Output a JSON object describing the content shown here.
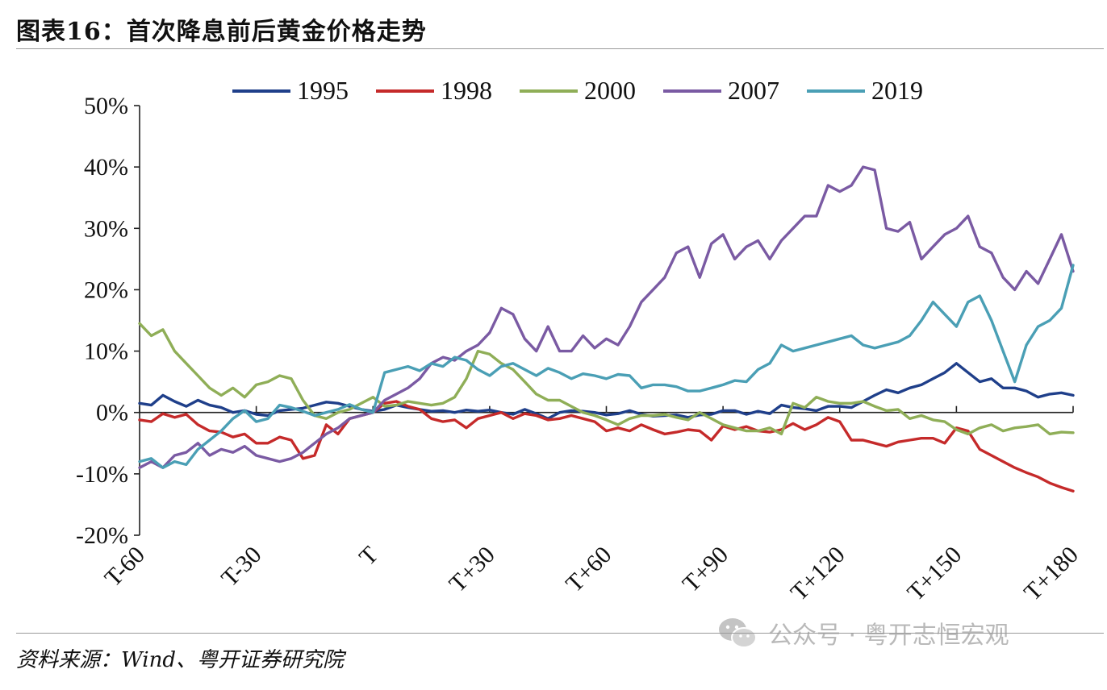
{
  "figure_title": "图表16：首次降息前后黄金价格走势",
  "source": "资料来源：Wind、粤开证券研究院",
  "watermark": {
    "text": "公众号 · 粤开志恒宏观",
    "icon": "wechat-icon"
  },
  "chart_data": {
    "type": "line",
    "title": "图表16：首次降息前后黄金价格走势",
    "xlabel": "",
    "ylabel": "",
    "ylim": [
      -20,
      50
    ],
    "xlim": [
      -60,
      180
    ],
    "y_ticks": [
      50,
      40,
      30,
      20,
      10,
      0,
      -10,
      -20
    ],
    "y_tick_labels": [
      "50%",
      "40%",
      "30%",
      "20%",
      "10%",
      "0%",
      "-10%",
      "-20%"
    ],
    "x_ticks": [
      -60,
      -30,
      0,
      30,
      60,
      90,
      120,
      150,
      180
    ],
    "x_tick_labels": [
      "T-60",
      "T-30",
      "T",
      "T+30",
      "T+60",
      "T+90",
      "T+120",
      "T+150",
      "T+180"
    ],
    "legend_position": "top",
    "grid": false,
    "series": [
      {
        "name": "1995",
        "color": "#1f3f8a",
        "x": [
          -60,
          -57,
          -54,
          -51,
          -48,
          -45,
          -42,
          -39,
          -36,
          -33,
          -30,
          -27,
          -24,
          -21,
          -18,
          -15,
          -12,
          -9,
          -6,
          -3,
          0,
          3,
          6,
          9,
          12,
          15,
          18,
          21,
          24,
          27,
          30,
          33,
          36,
          39,
          42,
          45,
          48,
          51,
          54,
          57,
          60,
          63,
          66,
          69,
          72,
          75,
          78,
          81,
          84,
          87,
          90,
          93,
          96,
          99,
          102,
          105,
          108,
          111,
          114,
          117,
          120,
          123,
          126,
          129,
          132,
          135,
          138,
          141,
          144,
          147,
          150,
          153,
          156,
          159,
          162,
          165,
          168,
          171,
          174,
          177,
          180
        ],
        "values": [
          1.5,
          1.2,
          2.8,
          1.8,
          1,
          2,
          1.2,
          0.8,
          0,
          0.3,
          -0.3,
          -0.5,
          0.3,
          0.5,
          0.7,
          1.2,
          1.7,
          1.5,
          1,
          0.5,
          0.2,
          0.5,
          1.2,
          0.8,
          0.5,
          0.2,
          0.3,
          0,
          0.4,
          0.2,
          0.4,
          0,
          -0.3,
          0.5,
          -0.2,
          -1,
          0,
          0.3,
          0.2,
          0,
          -0.4,
          -0.2,
          0.3,
          -0.3,
          -0.6,
          -0.5,
          -0.4,
          -0.8,
          -0.4,
          -0.3,
          0.3,
          0.3,
          -0.3,
          0.2,
          -0.2,
          1.2,
          0.8,
          0.6,
          0.3,
          1,
          1,
          0.8,
          1.8,
          2.8,
          3.7,
          3.2,
          4,
          4.5,
          5.5,
          6.5,
          8,
          6.5,
          5,
          5.5,
          4,
          4,
          3.5,
          2.5,
          3,
          3.2,
          2.8
        ]
      },
      {
        "name": "1998",
        "color": "#c52a2a",
        "x": [
          -60,
          -57,
          -54,
          -51,
          -48,
          -45,
          -42,
          -39,
          -36,
          -33,
          -30,
          -27,
          -24,
          -21,
          -18,
          -15,
          -12,
          -9,
          -6,
          -3,
          0,
          3,
          6,
          9,
          12,
          15,
          18,
          21,
          24,
          27,
          30,
          33,
          36,
          39,
          42,
          45,
          48,
          51,
          54,
          57,
          60,
          63,
          66,
          69,
          72,
          75,
          78,
          81,
          84,
          87,
          90,
          93,
          96,
          99,
          102,
          105,
          108,
          111,
          114,
          117,
          120,
          123,
          126,
          129,
          132,
          135,
          138,
          141,
          144,
          147,
          150,
          153,
          156,
          159,
          162,
          165,
          168,
          171,
          174,
          177,
          180
        ],
        "values": [
          -1.2,
          -1.5,
          -0.2,
          -0.8,
          -0.3,
          -2,
          -3,
          -3.2,
          -4,
          -3.5,
          -5,
          -5,
          -4,
          -4.5,
          -7.5,
          -7,
          -2,
          -3.5,
          -1,
          -0.5,
          0,
          1.5,
          1.8,
          1,
          0.5,
          -1,
          -1.5,
          -1.2,
          -2.5,
          -1,
          -0.5,
          0,
          -1,
          -0.2,
          -0.5,
          -1.2,
          -1,
          -0.5,
          -1,
          -1.5,
          -3,
          -2.5,
          -3,
          -2,
          -2.8,
          -3.5,
          -3.2,
          -2.8,
          -3,
          -4.5,
          -2.2,
          -2.8,
          -2.3,
          -3,
          -3.2,
          -2.8,
          -1.8,
          -2.8,
          -2,
          -0.8,
          -1.5,
          -4.5,
          -4.5,
          -5,
          -5.5,
          -4.8,
          -4.5,
          -4.2,
          -4.2,
          -5,
          -2.5,
          -3,
          -6,
          -7,
          -8,
          -9,
          -9.8,
          -10.5,
          -11.5,
          -12.2,
          -12.8
        ]
      },
      {
        "name": "2000",
        "color": "#8fae57",
        "x": [
          -60,
          -57,
          -54,
          -51,
          -48,
          -45,
          -42,
          -39,
          -36,
          -33,
          -30,
          -27,
          -24,
          -21,
          -18,
          -15,
          -12,
          -9,
          -6,
          -3,
          0,
          3,
          6,
          9,
          12,
          15,
          18,
          21,
          24,
          27,
          30,
          33,
          36,
          39,
          42,
          45,
          48,
          51,
          54,
          57,
          60,
          63,
          66,
          69,
          72,
          75,
          78,
          81,
          84,
          87,
          90,
          93,
          96,
          99,
          102,
          105,
          108,
          111,
          114,
          117,
          120,
          123,
          126,
          129,
          132,
          135,
          138,
          141,
          144,
          147,
          150,
          153,
          156,
          159,
          162,
          165,
          168,
          171,
          174,
          177,
          180
        ],
        "values": [
          14.5,
          12.5,
          13.5,
          10,
          8,
          6,
          4,
          2.8,
          4,
          2.5,
          4.5,
          5,
          6,
          5.5,
          2,
          -0.5,
          -1,
          0,
          0.5,
          1.5,
          2.5,
          1,
          1.2,
          1.8,
          1.5,
          1.2,
          1.5,
          2.5,
          5.5,
          10,
          9.5,
          8,
          7,
          5,
          3,
          2,
          2,
          1,
          0,
          -0.5,
          -1.2,
          -2,
          -1,
          -0.5,
          -0.5,
          -0.3,
          -0.8,
          -1.2,
          0,
          -1,
          -2,
          -2.5,
          -3,
          -3,
          -2.5,
          -3.5,
          1.5,
          0.8,
          2.5,
          1.8,
          1.5,
          1.5,
          1.8,
          1,
          0.3,
          0.5,
          -1,
          -0.5,
          -1.2,
          -1.5,
          -2.8,
          -3.5,
          -2.5,
          -2,
          -3,
          -2.5,
          -2.3,
          -2,
          -3.5,
          -3.2,
          -3.3
        ]
      },
      {
        "name": "2007",
        "color": "#7a5aa3",
        "x": [
          -60,
          -57,
          -54,
          -51,
          -48,
          -45,
          -42,
          -39,
          -36,
          -33,
          -30,
          -27,
          -24,
          -21,
          -18,
          -15,
          -12,
          -9,
          -6,
          -3,
          0,
          3,
          6,
          9,
          12,
          15,
          18,
          21,
          24,
          27,
          30,
          33,
          36,
          39,
          42,
          45,
          48,
          51,
          54,
          57,
          60,
          63,
          66,
          69,
          72,
          75,
          78,
          81,
          84,
          87,
          90,
          93,
          96,
          99,
          102,
          105,
          108,
          111,
          114,
          117,
          120,
          123,
          126,
          129,
          132,
          135,
          138,
          141,
          144,
          147,
          150,
          153,
          156,
          159,
          162,
          165,
          168,
          171,
          174,
          177,
          180
        ],
        "values": [
          -9,
          -8,
          -9,
          -7,
          -6.5,
          -5,
          -7,
          -6,
          -6.5,
          -5.5,
          -7,
          -7.5,
          -8,
          -7.5,
          -6.5,
          -5,
          -3.5,
          -2.5,
          -1,
          -0.5,
          0,
          2,
          3,
          4,
          5.5,
          8,
          9,
          8.5,
          10,
          11,
          13,
          17,
          16,
          12,
          10,
          14,
          10,
          10,
          12.5,
          10.5,
          12,
          11,
          14,
          18,
          20,
          22,
          26,
          27,
          22,
          27.5,
          29,
          25,
          27,
          28,
          25,
          28,
          30,
          32,
          32,
          37,
          36,
          37,
          40,
          39.5,
          30,
          29.5,
          31,
          25,
          27,
          29,
          30,
          32,
          27,
          26,
          22,
          20,
          23,
          21,
          25,
          29,
          23
        ]
      },
      {
        "name": "2019",
        "color": "#4a9fb5",
        "x": [
          -60,
          -57,
          -54,
          -51,
          -48,
          -45,
          -42,
          -39,
          -36,
          -33,
          -30,
          -27,
          -24,
          -21,
          -18,
          -15,
          -12,
          -9,
          -6,
          -3,
          0,
          3,
          6,
          9,
          12,
          15,
          18,
          21,
          24,
          27,
          30,
          33,
          36,
          39,
          42,
          45,
          48,
          51,
          54,
          57,
          60,
          63,
          66,
          69,
          72,
          75,
          78,
          81,
          84,
          87,
          90,
          93,
          96,
          99,
          102,
          105,
          108,
          111,
          114,
          117,
          120,
          123,
          126,
          129,
          132,
          135,
          138,
          141,
          144,
          147,
          150,
          153,
          156,
          159,
          162,
          165,
          168,
          171,
          174,
          177,
          180
        ],
        "values": [
          -8,
          -7.5,
          -9,
          -8,
          -8.5,
          -6,
          -4.5,
          -3,
          -1,
          0.3,
          -1.5,
          -1,
          1.2,
          0.8,
          0.2,
          -0.5,
          0,
          0.5,
          1.3,
          0.5,
          0,
          6.5,
          7,
          7.5,
          6.8,
          8,
          7.5,
          9,
          8.5,
          7,
          6,
          7.5,
          8,
          7,
          6,
          7.2,
          6.5,
          5.5,
          6.3,
          6,
          5.5,
          6.2,
          6,
          4,
          4.5,
          4.5,
          4.2,
          3.5,
          3.5,
          4,
          4.5,
          5.2,
          5,
          7,
          8,
          11,
          10,
          10.5,
          11,
          11.5,
          12,
          12.5,
          11,
          10.5,
          11,
          11.5,
          12.5,
          15,
          18,
          16,
          14,
          18,
          19,
          15,
          10,
          5,
          11,
          14,
          15,
          17,
          24
        ]
      }
    ]
  }
}
